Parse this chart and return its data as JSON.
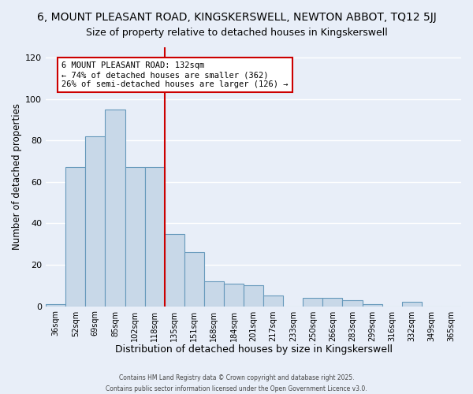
{
  "title": "6, MOUNT PLEASANT ROAD, KINGSKERSWELL, NEWTON ABBOT, TQ12 5JJ",
  "subtitle": "Size of property relative to detached houses in Kingskerswell",
  "xlabel": "Distribution of detached houses by size in Kingskerswell",
  "ylabel": "Number of detached properties",
  "bar_labels": [
    "36sqm",
    "52sqm",
    "69sqm",
    "85sqm",
    "102sqm",
    "118sqm",
    "135sqm",
    "151sqm",
    "168sqm",
    "184sqm",
    "201sqm",
    "217sqm",
    "233sqm",
    "250sqm",
    "266sqm",
    "283sqm",
    "299sqm",
    "316sqm",
    "332sqm",
    "349sqm",
    "365sqm"
  ],
  "bar_values": [
    1,
    67,
    82,
    95,
    67,
    67,
    35,
    26,
    12,
    11,
    10,
    5,
    0,
    4,
    4,
    3,
    1,
    0,
    2,
    0,
    0
  ],
  "bar_color": "#c8d8e8",
  "bar_edge_color": "#6699bb",
  "vline_x_index": 6,
  "vline_color": "#cc0000",
  "ylim": [
    0,
    125
  ],
  "yticks": [
    0,
    20,
    40,
    60,
    80,
    100,
    120
  ],
  "annotation_title": "6 MOUNT PLEASANT ROAD: 132sqm",
  "annotation_line1": "← 74% of detached houses are smaller (362)",
  "annotation_line2": "26% of semi-detached houses are larger (126) →",
  "annotation_box_color": "#ffffff",
  "annotation_box_edge": "#cc0000",
  "footer1": "Contains HM Land Registry data © Crown copyright and database right 2025.",
  "footer2": "Contains public sector information licensed under the Open Government Licence v3.0.",
  "bg_color": "#e8eef8",
  "grid_color": "#ffffff",
  "title_fontsize": 10,
  "subtitle_fontsize": 9
}
